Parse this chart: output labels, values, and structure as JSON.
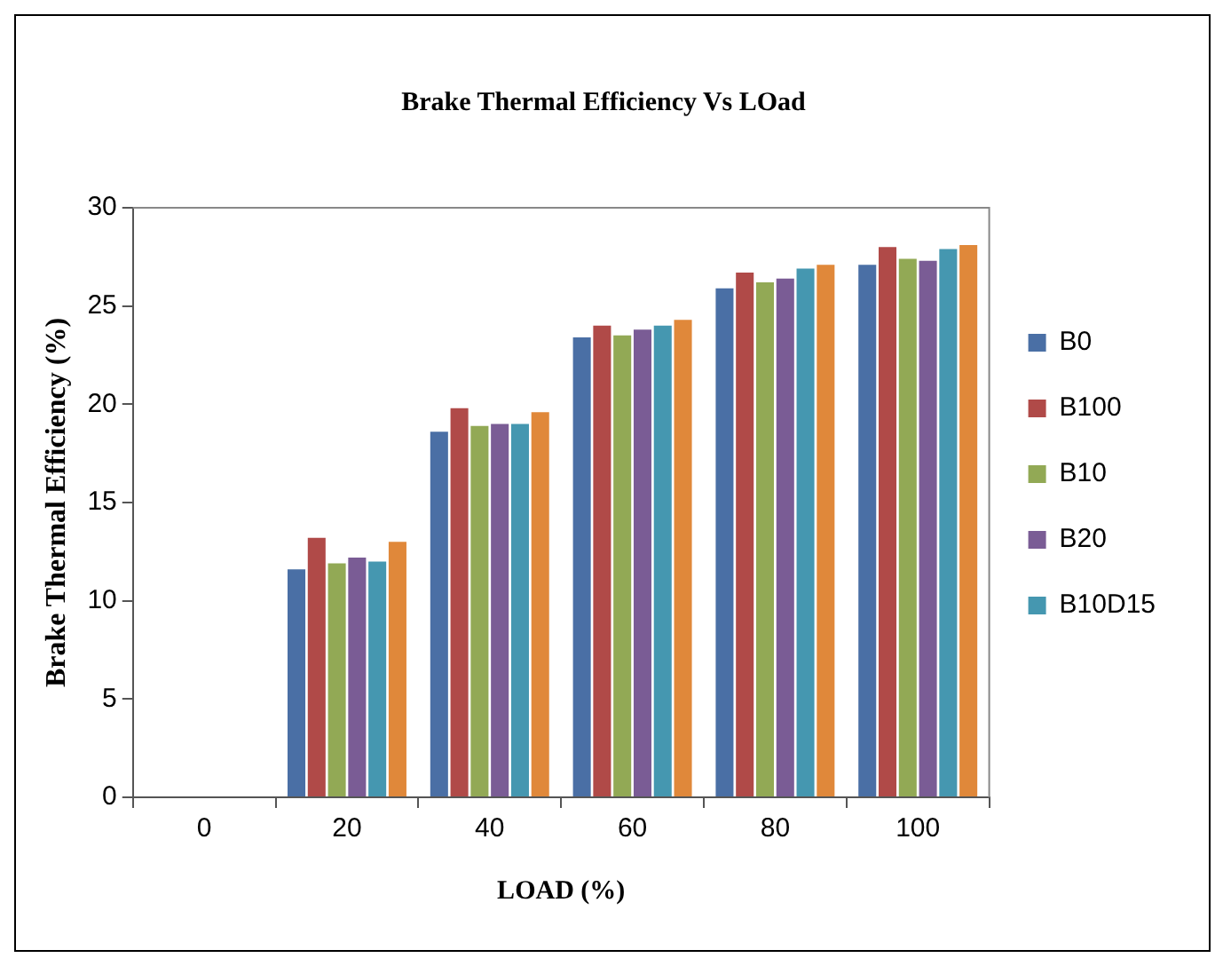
{
  "chart_data": {
    "type": "bar",
    "title": "Brake Thermal Efficiency Vs LOad",
    "xlabel": "LOAD (%)",
    "ylabel": "Brake Thermal Efficiency (%)",
    "categories": [
      "0",
      "20",
      "40",
      "60",
      "80",
      "100"
    ],
    "series": [
      {
        "name": "B0",
        "color": "#4a6fa5",
        "values": [
          0,
          11.6,
          18.6,
          23.4,
          25.9,
          27.1
        ]
      },
      {
        "name": "B100",
        "color": "#b04a48",
        "values": [
          0,
          13.2,
          19.8,
          24.0,
          26.7,
          28.0
        ]
      },
      {
        "name": "B10",
        "color": "#92a955",
        "values": [
          0,
          11.9,
          18.9,
          23.5,
          26.2,
          27.4
        ]
      },
      {
        "name": "B20",
        "color": "#7a5c95",
        "values": [
          0,
          12.2,
          19.0,
          23.8,
          26.4,
          27.3
        ]
      },
      {
        "name": "B10D15",
        "color": "#4597b0",
        "values": [
          0,
          12.0,
          19.0,
          24.0,
          26.9,
          27.9
        ]
      },
      {
        "color": "#e0883a",
        "values": [
          0,
          13.0,
          19.6,
          24.3,
          27.1,
          28.1
        ]
      }
    ],
    "ylim": [
      0,
      30
    ],
    "yticks": [
      0,
      5,
      10,
      15,
      20,
      25,
      30
    ],
    "grid": false,
    "legend": "right"
  }
}
